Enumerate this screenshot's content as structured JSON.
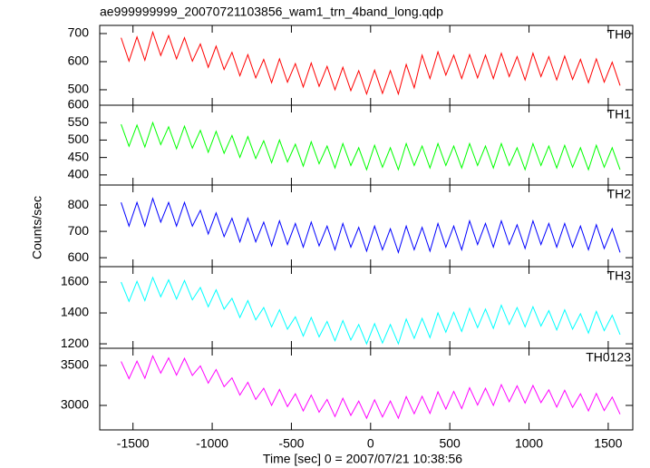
{
  "figure": {
    "title": "ae999999999_20070721103856_wam1_trn_4band_long.qdp",
    "x_label": "Time [sec] 0 = 2007/07/21 10:38:56",
    "y_label": "Counts/sec"
  },
  "chart_data": [
    {
      "type": "line",
      "label": "TH0",
      "color": "#ff0000",
      "xlim": [
        -1710,
        1655
      ],
      "xticks": [
        -1500,
        -1000,
        -500,
        0,
        500,
        1000,
        1500
      ],
      "ylim": [
        445,
        729
      ],
      "yticks": [
        500,
        600,
        700
      ],
      "x": [
        -1575,
        -1525,
        -1475,
        -1425,
        -1375,
        -1325,
        -1275,
        -1225,
        -1175,
        -1125,
        -1075,
        -1025,
        -975,
        -925,
        -875,
        -825,
        -775,
        -725,
        -675,
        -625,
        -575,
        -525,
        -475,
        -425,
        -375,
        -325,
        -275,
        -225,
        -175,
        -125,
        -75,
        -25,
        25,
        75,
        125,
        175,
        225,
        275,
        325,
        375,
        425,
        475,
        525,
        575,
        625,
        675,
        725,
        775,
        825,
        875,
        925,
        975,
        1025,
        1075,
        1125,
        1175,
        1225,
        1275,
        1325,
        1375,
        1425,
        1475,
        1525,
        1575
      ],
      "values": [
        685,
        602,
        688,
        605,
        705,
        622,
        693,
        610,
        685,
        602,
        663,
        580,
        655,
        572,
        633,
        550,
        625,
        542,
        608,
        525,
        610,
        527,
        593,
        510,
        595,
        512,
        583,
        500,
        580,
        497,
        568,
        485,
        570,
        487,
        568,
        485,
        590,
        507,
        623,
        540,
        635,
        552,
        623,
        540,
        625,
        542,
        623,
        540,
        630,
        547,
        618,
        535,
        630,
        547,
        618,
        535,
        620,
        537,
        608,
        525,
        610,
        527,
        598,
        515
      ]
    },
    {
      "type": "line",
      "label": "TH1",
      "color": "#00ff00",
      "xlim": [
        -1710,
        1655
      ],
      "xticks": [
        -1500,
        -1000,
        -500,
        0,
        500,
        1000,
        1500
      ],
      "ylim": [
        371,
        600
      ],
      "yticks": [
        400,
        450,
        500,
        550,
        600
      ],
      "x": [
        -1575,
        -1525,
        -1475,
        -1425,
        -1375,
        -1325,
        -1275,
        -1225,
        -1175,
        -1125,
        -1075,
        -1025,
        -975,
        -925,
        -875,
        -825,
        -775,
        -725,
        -675,
        -625,
        -575,
        -525,
        -475,
        -425,
        -375,
        -325,
        -275,
        -225,
        -175,
        -125,
        -75,
        -25,
        25,
        75,
        125,
        175,
        225,
        275,
        325,
        375,
        425,
        475,
        525,
        575,
        625,
        675,
        725,
        775,
        825,
        875,
        925,
        975,
        1025,
        1075,
        1125,
        1175,
        1225,
        1275,
        1325,
        1375,
        1425,
        1475,
        1525,
        1575
      ],
      "values": [
        545,
        482,
        543,
        480,
        550,
        487,
        538,
        475,
        540,
        477,
        528,
        465,
        525,
        462,
        513,
        450,
        510,
        447,
        498,
        435,
        500,
        437,
        488,
        425,
        495,
        432,
        483,
        420,
        490,
        427,
        478,
        415,
        485,
        422,
        478,
        415,
        490,
        427,
        483,
        420,
        490,
        427,
        483,
        420,
        490,
        427,
        483,
        420,
        490,
        427,
        478,
        415,
        490,
        427,
        483,
        420,
        485,
        422,
        478,
        415,
        485,
        422,
        478,
        415
      ]
    },
    {
      "type": "line",
      "label": "TH2",
      "color": "#0000ff",
      "xlim": [
        -1710,
        1655
      ],
      "xticks": [
        -1500,
        -1000,
        -500,
        0,
        500,
        1000,
        1500
      ],
      "ylim": [
        566,
        876
      ],
      "yticks": [
        600,
        700,
        800
      ],
      "x": [
        -1575,
        -1525,
        -1475,
        -1425,
        -1375,
        -1325,
        -1275,
        -1225,
        -1175,
        -1125,
        -1075,
        -1025,
        -975,
        -925,
        -875,
        -825,
        -775,
        -725,
        -675,
        -625,
        -575,
        -525,
        -475,
        -425,
        -375,
        -325,
        -275,
        -225,
        -175,
        -125,
        -75,
        -25,
        25,
        75,
        125,
        175,
        225,
        275,
        325,
        375,
        425,
        475,
        525,
        575,
        625,
        675,
        725,
        775,
        825,
        875,
        925,
        975,
        1025,
        1075,
        1125,
        1175,
        1225,
        1275,
        1325,
        1375,
        1425,
        1475,
        1525,
        1575
      ],
      "values": [
        810,
        720,
        810,
        720,
        825,
        735,
        810,
        720,
        810,
        720,
        780,
        690,
        770,
        680,
        750,
        660,
        750,
        660,
        735,
        645,
        740,
        650,
        730,
        640,
        735,
        645,
        720,
        630,
        730,
        640,
        715,
        625,
        720,
        630,
        710,
        620,
        720,
        630,
        715,
        625,
        730,
        640,
        720,
        630,
        740,
        650,
        730,
        640,
        740,
        650,
        725,
        635,
        740,
        650,
        730,
        640,
        730,
        640,
        720,
        630,
        725,
        635,
        710,
        620
      ]
    },
    {
      "type": "line",
      "label": "TH3",
      "color": "#00ffff",
      "xlim": [
        -1710,
        1655
      ],
      "xticks": [
        -1500,
        -1000,
        -500,
        0,
        500,
        1000,
        1500
      ],
      "ylim": [
        1171,
        1700
      ],
      "yticks": [
        1200,
        1400,
        1600
      ],
      "x": [
        -1575,
        -1525,
        -1475,
        -1425,
        -1375,
        -1325,
        -1275,
        -1225,
        -1175,
        -1125,
        -1075,
        -1025,
        -975,
        -925,
        -875,
        -825,
        -775,
        -725,
        -675,
        -625,
        -575,
        -525,
        -475,
        -425,
        -375,
        -325,
        -275,
        -225,
        -175,
        -125,
        -75,
        -25,
        25,
        75,
        125,
        175,
        225,
        275,
        325,
        375,
        425,
        475,
        525,
        575,
        625,
        675,
        725,
        775,
        825,
        875,
        925,
        975,
        1025,
        1075,
        1125,
        1175,
        1225,
        1275,
        1325,
        1375,
        1425,
        1475,
        1525,
        1575
      ],
      "values": [
        1600,
        1475,
        1605,
        1480,
        1630,
        1505,
        1615,
        1490,
        1610,
        1485,
        1565,
        1440,
        1550,
        1425,
        1495,
        1370,
        1480,
        1355,
        1435,
        1310,
        1420,
        1295,
        1375,
        1250,
        1370,
        1245,
        1345,
        1220,
        1350,
        1225,
        1325,
        1200,
        1330,
        1205,
        1325,
        1200,
        1360,
        1235,
        1365,
        1240,
        1400,
        1275,
        1405,
        1280,
        1430,
        1305,
        1425,
        1300,
        1450,
        1325,
        1435,
        1310,
        1440,
        1315,
        1415,
        1290,
        1420,
        1295,
        1395,
        1270,
        1410,
        1285,
        1385,
        1260
      ]
    },
    {
      "type": "line",
      "label": "TH0123",
      "color": "#ff00ff",
      "xlim": [
        -1710,
        1655
      ],
      "xticks": [
        -1500,
        -1000,
        -500,
        0,
        500,
        1000,
        1500
      ],
      "ylim": [
        2693,
        3716
      ],
      "yticks": [
        3000,
        3500
      ],
      "x": [
        -1575,
        -1525,
        -1475,
        -1425,
        -1375,
        -1325,
        -1275,
        -1225,
        -1175,
        -1125,
        -1075,
        -1025,
        -975,
        -925,
        -875,
        -825,
        -775,
        -725,
        -675,
        -625,
        -575,
        -525,
        -475,
        -425,
        -375,
        -325,
        -275,
        -225,
        -175,
        -125,
        -75,
        -25,
        25,
        75,
        125,
        175,
        225,
        275,
        325,
        375,
        425,
        475,
        525,
        575,
        625,
        675,
        725,
        775,
        825,
        875,
        925,
        975,
        1025,
        1075,
        1125,
        1175,
        1225,
        1275,
        1325,
        1375,
        1425,
        1475,
        1525,
        1575
      ],
      "values": [
        3550,
        3335,
        3555,
        3340,
        3620,
        3405,
        3595,
        3380,
        3590,
        3375,
        3495,
        3280,
        3450,
        3235,
        3345,
        3130,
        3290,
        3075,
        3215,
        3000,
        3200,
        2985,
        3145,
        2930,
        3130,
        2915,
        3075,
        2860,
        3090,
        2875,
        3055,
        2840,
        3070,
        2855,
        3055,
        2840,
        3110,
        2895,
        3115,
        2900,
        3170,
        2955,
        3175,
        2960,
        3220,
        3005,
        3215,
        3000,
        3260,
        3045,
        3245,
        3030,
        3250,
        3035,
        3195,
        2980,
        3190,
        2975,
        3145,
        2930,
        3150,
        2935,
        3105,
        2890
      ]
    }
  ]
}
